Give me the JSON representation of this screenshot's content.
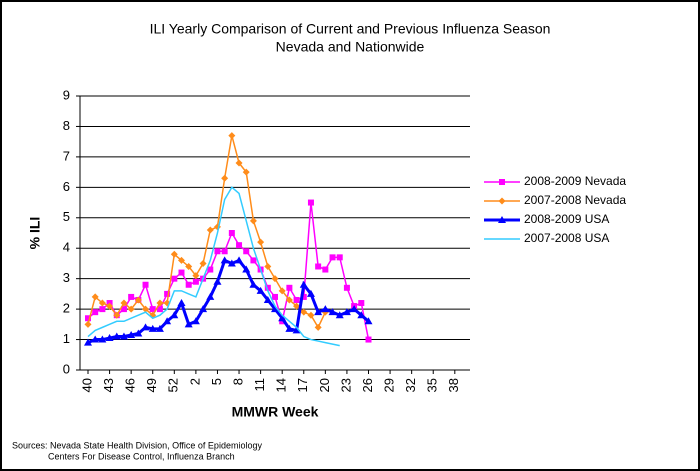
{
  "chart_data": {
    "type": "line",
    "title": "ILI Yearly Comparison of Current and Previous Influenza Season",
    "subtitle": "Nevada and Nationwide",
    "y_label": "% ILI",
    "x_label": "MMWR Week",
    "notes": [
      "Sources:  Nevada State Health Division, Office of Epidemiology",
      "Centers For Disease Control, Influenza Branch"
    ],
    "categories": [
      "40",
      null,
      null,
      "43",
      null,
      null,
      "46",
      null,
      null,
      "49",
      null,
      null,
      "52",
      null,
      null,
      "2",
      null,
      null,
      "5",
      null,
      null,
      "8",
      null,
      null,
      "11",
      null,
      null,
      "14",
      null,
      null,
      "17",
      null,
      null,
      "20",
      null,
      null,
      "23",
      null,
      null,
      "26",
      null,
      null,
      "29",
      null,
      null,
      "32",
      null,
      null,
      "35",
      null,
      null,
      "38",
      null
    ],
    "ylim": [
      0,
      9
    ],
    "yticks": [
      0,
      1,
      2,
      3,
      4,
      5,
      6,
      7,
      8,
      9
    ],
    "grid": true,
    "legend": "right",
    "series": [
      {
        "name": "2008-2009 Nevada",
        "color": "#ff00ff",
        "marker": "square",
        "values": [
          1.7,
          1.9,
          2.0,
          2.2,
          1.8,
          2.0,
          2.4,
          2.3,
          2.8,
          2.0,
          2.0,
          2.5,
          3.0,
          3.2,
          2.8,
          2.9,
          3.0,
          3.3,
          3.9,
          3.9,
          4.5,
          4.1,
          3.9,
          3.6,
          3.3,
          2.7,
          2.4,
          1.6,
          2.7,
          2.3,
          2.4,
          5.5,
          3.4,
          3.3,
          3.7,
          3.7,
          2.7,
          2.1,
          2.2,
          1.0,
          null,
          null,
          null,
          null,
          null,
          null,
          null,
          null,
          null,
          null,
          null,
          null,
          null
        ]
      },
      {
        "name": "2007-2008 Nevada",
        "color": "#ff8c1a",
        "marker": "diamond",
        "values": [
          1.5,
          2.4,
          2.2,
          2.1,
          1.8,
          2.2,
          2.0,
          2.3,
          2.0,
          1.8,
          2.2,
          2.2,
          3.8,
          3.6,
          3.4,
          3.1,
          3.5,
          4.6,
          4.7,
          6.3,
          7.7,
          6.8,
          6.5,
          4.9,
          4.2,
          3.4,
          3.0,
          2.6,
          2.3,
          2.1,
          1.9,
          1.8,
          1.4,
          1.9,
          null,
          null,
          null,
          null,
          null,
          null,
          null,
          null,
          null,
          null,
          null,
          null,
          null,
          null,
          null,
          null,
          null,
          null,
          null
        ]
      },
      {
        "name": "2008-2009 USA",
        "color": "#0000ff",
        "marker": "triangle",
        "values": [
          0.9,
          1.0,
          1.0,
          1.05,
          1.1,
          1.1,
          1.15,
          1.2,
          1.4,
          1.35,
          1.35,
          1.6,
          1.8,
          2.2,
          1.5,
          1.6,
          2.0,
          2.4,
          2.9,
          3.6,
          3.5,
          3.6,
          3.3,
          2.8,
          2.6,
          2.3,
          2.0,
          1.7,
          1.35,
          1.3,
          2.8,
          2.5,
          1.9,
          2.0,
          1.9,
          1.8,
          1.9,
          2.0,
          1.8,
          1.6,
          null,
          null,
          null,
          null,
          null,
          null,
          null,
          null,
          null,
          null,
          null,
          null,
          null
        ]
      },
      {
        "name": "2007-2008 USA",
        "color": "#33ccff",
        "marker": "none",
        "values": [
          1.1,
          1.3,
          1.4,
          1.5,
          1.6,
          1.6,
          1.7,
          1.8,
          1.9,
          1.7,
          1.8,
          2.0,
          2.6,
          2.6,
          2.5,
          2.4,
          3.0,
          3.6,
          4.5,
          5.6,
          6.0,
          5.8,
          4.9,
          4.0,
          3.3,
          2.6,
          2.1,
          1.8,
          1.6,
          1.4,
          1.1,
          1.0,
          0.95,
          0.9,
          0.85,
          0.8,
          null,
          null,
          null,
          null,
          null,
          null,
          null,
          null,
          null,
          null,
          null,
          null,
          null,
          null,
          null,
          null,
          null
        ]
      }
    ]
  }
}
